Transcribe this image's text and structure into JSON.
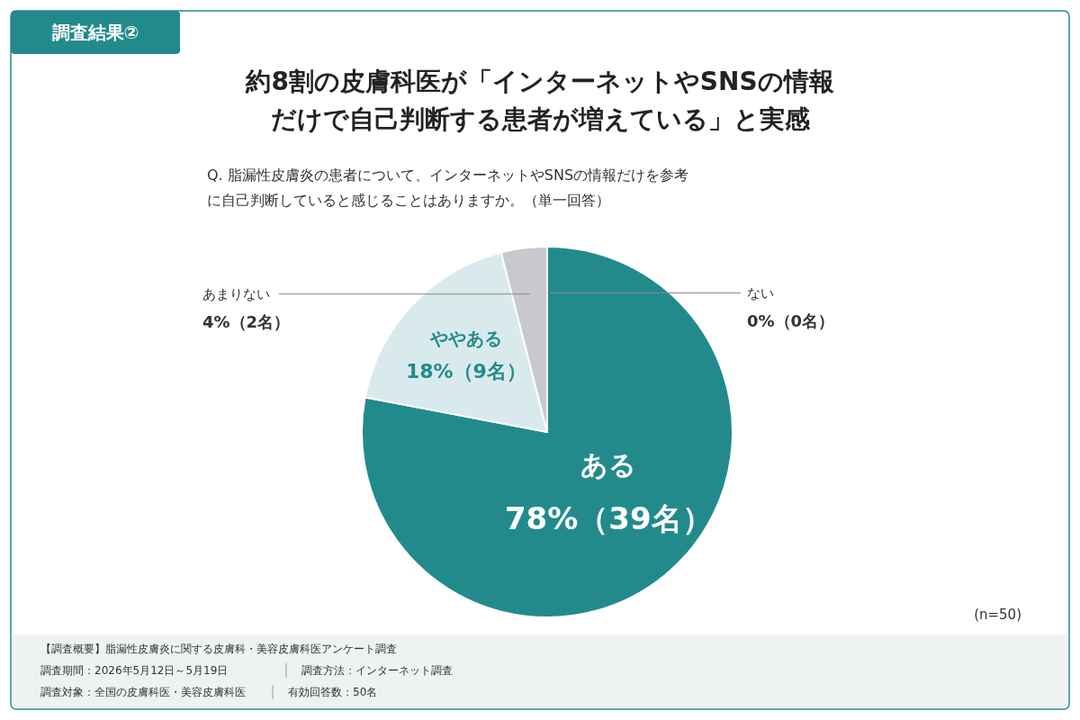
{
  "chart_data": {
    "type": "pie",
    "title": "約8割の皮膚科医が「インターネットやSNSの情報だけで自己判断する患者が増えている」と実感",
    "subtitle": "Q. 脂漏性皮膚炎の患者について、インターネットやSNSの情報だけを参考に自己判断していると感じることはありますか。（単一回答）",
    "categories": [
      "ある",
      "ややある",
      "あまりない",
      "ない"
    ],
    "values": [
      78,
      18,
      4,
      0
    ],
    "colors": [
      "#238a8c",
      "#d9eaec",
      "#c8c8ce",
      "#ffffff"
    ],
    "value_labels": [
      "78%（39名）",
      "18%（9名）",
      "4%（2名）",
      "0%（0名）"
    ],
    "annotations": [
      "調査結果②",
      "(n=50)",
      "【調査概要】脂漏性皮膚炎に関する皮膚科・美容皮膚科医アンケート調査",
      "調査期間：2026年5月12日～5月19日",
      "調査方法：インターネット調査",
      "調査対象：全国の皮膚科医・美容皮膚科医",
      "有効回答数：50名"
    ]
  }
}
